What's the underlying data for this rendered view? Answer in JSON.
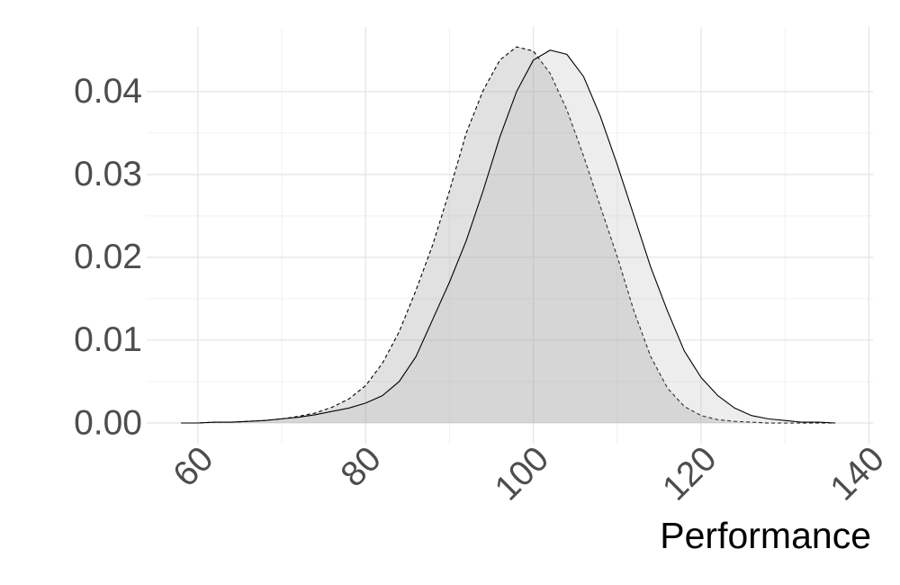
{
  "chart_data": {
    "type": "density",
    "x_label": "Performance",
    "x": [
      58,
      60,
      62,
      64,
      66,
      68,
      70,
      72,
      74,
      76,
      78,
      80,
      82,
      84,
      86,
      88,
      90,
      92,
      94,
      96,
      98,
      100,
      102,
      104,
      106,
      108,
      110,
      112,
      114,
      116,
      118,
      120,
      122,
      124,
      126,
      128,
      130,
      132,
      134,
      136
    ],
    "series": [
      {
        "color": "#000000",
        "fill": "#9a9a9a",
        "fill_opacity": 0.3,
        "linestyle": "dashed",
        "values": [
          0,
          0,
          0.0001,
          0.0001,
          0.0002,
          0.0003,
          0.0005,
          0.0008,
          0.0012,
          0.0019,
          0.0029,
          0.0045,
          0.0072,
          0.011,
          0.016,
          0.0215,
          0.028,
          0.035,
          0.0401,
          0.0438,
          0.0454,
          0.0449,
          0.0422,
          0.0378,
          0.0322,
          0.0261,
          0.0201,
          0.0135,
          0.008,
          0.0042,
          0.002,
          0.0009,
          0.0004,
          0.0002,
          0.0001,
          0,
          0,
          0,
          0,
          0
        ]
      },
      {
        "color": "#000000",
        "fill": "#b8b8b8",
        "fill_opacity": 0.25,
        "linestyle": "solid",
        "values": [
          0,
          0,
          0.0001,
          0.0001,
          0.0002,
          0.0003,
          0.0005,
          0.0007,
          0.001,
          0.0014,
          0.0018,
          0.0024,
          0.0033,
          0.005,
          0.008,
          0.0125,
          0.017,
          0.022,
          0.028,
          0.0345,
          0.04,
          0.0438,
          0.045,
          0.0445,
          0.0418,
          0.037,
          0.0312,
          0.025,
          0.0188,
          0.0135,
          0.0087,
          0.0055,
          0.0033,
          0.0018,
          0.0009,
          0.0005,
          0.0003,
          0.0001,
          0.0001,
          0
        ]
      }
    ],
    "xlim": [
      53.9,
      140.5
    ],
    "ylim": [
      -0.0025,
      0.0478
    ],
    "xticks": [
      60,
      80,
      100,
      120,
      140
    ],
    "yticks": [
      {
        "value": 0,
        "label": "0.00"
      },
      {
        "value": 0.01,
        "label": "0.01"
      },
      {
        "value": 0.02,
        "label": "0.02"
      },
      {
        "value": 0.03,
        "label": "0.03"
      },
      {
        "value": 0.04,
        "label": "0.04"
      }
    ],
    "grid": true
  }
}
